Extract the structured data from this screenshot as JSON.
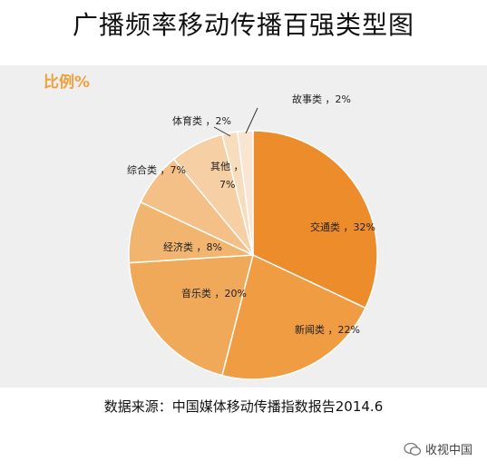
{
  "title": "广播频率移动传播百强类型图",
  "source": "数据来源：中国媒体移动传播指数报告2014.6",
  "watermark": "收视中国",
  "chart_data": {
    "type": "pie",
    "subtitle": "比例%",
    "slices": [
      {
        "label": "交通类",
        "value": 32,
        "value_text": "32%",
        "color": "#ec8c2a"
      },
      {
        "label": "新闻类",
        "value": 22,
        "value_text": "22%",
        "color": "#ef9c43"
      },
      {
        "label": "音乐类",
        "value": 20,
        "value_text": "20%",
        "color": "#f0a959"
      },
      {
        "label": "经济类",
        "value": 8,
        "value_text": "8%",
        "color": "#f2b570"
      },
      {
        "label": "综合类",
        "value": 7,
        "value_text": "7%",
        "color": "#f4c088"
      },
      {
        "label": "其他",
        "value": 7,
        "value_text": "7%",
        "color": "#f6cfa4"
      },
      {
        "label": "体育类",
        "value": 2,
        "value_text": "2%",
        "color": "#f8dcbe"
      },
      {
        "label": "故事类",
        "value": 2,
        "value_text": "2%",
        "color": "#f9e5d2"
      }
    ]
  }
}
